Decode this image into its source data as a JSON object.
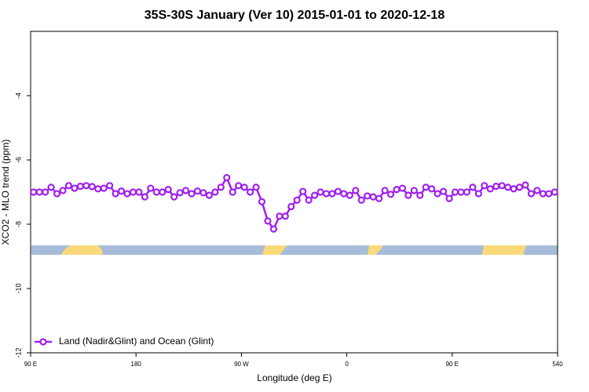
{
  "chart_data": {
    "type": "line",
    "title": "35S-30S January (Ver 10)   2015-01-01 to 2020-12-18",
    "x_label": "Longitude (deg E)",
    "y_label": "XCO2 - MLO trend (ppm)",
    "x": [
      92.5,
      97.5,
      102.5,
      107.5,
      112.5,
      117.5,
      122.5,
      127.5,
      132.5,
      137.5,
      142.5,
      147.5,
      152.5,
      157.5,
      162.5,
      167.5,
      172.5,
      177.5,
      182.5,
      187.5,
      192.5,
      197.5,
      202.5,
      207.5,
      212.5,
      217.5,
      222.5,
      227.5,
      232.5,
      237.5,
      242.5,
      247.5,
      252.5,
      257.5,
      262.5,
      267.5,
      272.5,
      277.5,
      282.5,
      287.5,
      292.5,
      297.5,
      302.5,
      307.5,
      312.5,
      317.5,
      322.5,
      327.5,
      332.5,
      337.5,
      342.5,
      347.5,
      352.5,
      357.5,
      362.5,
      367.5,
      372.5,
      377.5,
      382.5,
      387.5,
      392.5,
      397.5,
      402.5,
      407.5,
      412.5,
      417.5,
      422.5,
      427.5,
      432.5,
      437.5,
      442.5,
      447.5,
      452.5,
      457.5,
      462.5,
      467.5,
      472.5,
      477.5,
      482.5,
      487.5,
      492.5,
      497.5,
      502.5,
      507.5,
      512.5,
      517.5,
      522.5,
      527.5,
      532.5,
      537.5
    ],
    "series": [
      {
        "name": "Land (Nadir&Glint) and Ocean (Glint)",
        "color": "#a020f0",
        "values": [
          -7.0,
          -7.0,
          -7.0,
          -6.85,
          -7.05,
          -6.95,
          -6.8,
          -6.88,
          -6.82,
          -6.8,
          -6.83,
          -6.9,
          -6.88,
          -6.8,
          -7.05,
          -6.97,
          -7.05,
          -7.0,
          -7.0,
          -7.15,
          -6.88,
          -7.0,
          -7.0,
          -6.92,
          -7.15,
          -7.02,
          -6.95,
          -7.05,
          -6.97,
          -7.02,
          -7.1,
          -7.0,
          -6.85,
          -6.55,
          -7.0,
          -6.8,
          -6.85,
          -7.0,
          -6.85,
          -7.3,
          -7.9,
          -8.15,
          -7.75,
          -7.75,
          -7.45,
          -7.25,
          -6.98,
          -7.25,
          -7.1,
          -7.0,
          -7.05,
          -7.05,
          -6.98,
          -7.05,
          -7.1,
          -6.95,
          -7.25,
          -7.12,
          -7.15,
          -7.2,
          -6.95,
          -7.07,
          -6.92,
          -6.88,
          -7.1,
          -6.95,
          -7.1,
          -6.85,
          -6.9,
          -7.05,
          -6.98,
          -7.2,
          -7.0,
          -7.0,
          -7.0,
          -6.85,
          -7.05,
          -6.8,
          -6.9,
          -6.82,
          -6.8,
          -6.85,
          -6.9,
          -6.85,
          -6.78,
          -7.05,
          -6.95,
          -7.05,
          -7.05,
          -7.0
        ]
      }
    ],
    "xlim": [
      90,
      540
    ],
    "xticks": [
      {
        "value": 90,
        "label": "90 E"
      },
      180,
      {
        "value": 270,
        "label": "90 W"
      },
      {
        "value": 360,
        "label": "0"
      },
      {
        "value": 450,
        "label": "90 E"
      },
      540
    ],
    "ylim": [
      -12,
      -2
    ],
    "yticks": [
      -12,
      -10,
      -8,
      -6,
      -4
    ],
    "legend": "lower left"
  }
}
